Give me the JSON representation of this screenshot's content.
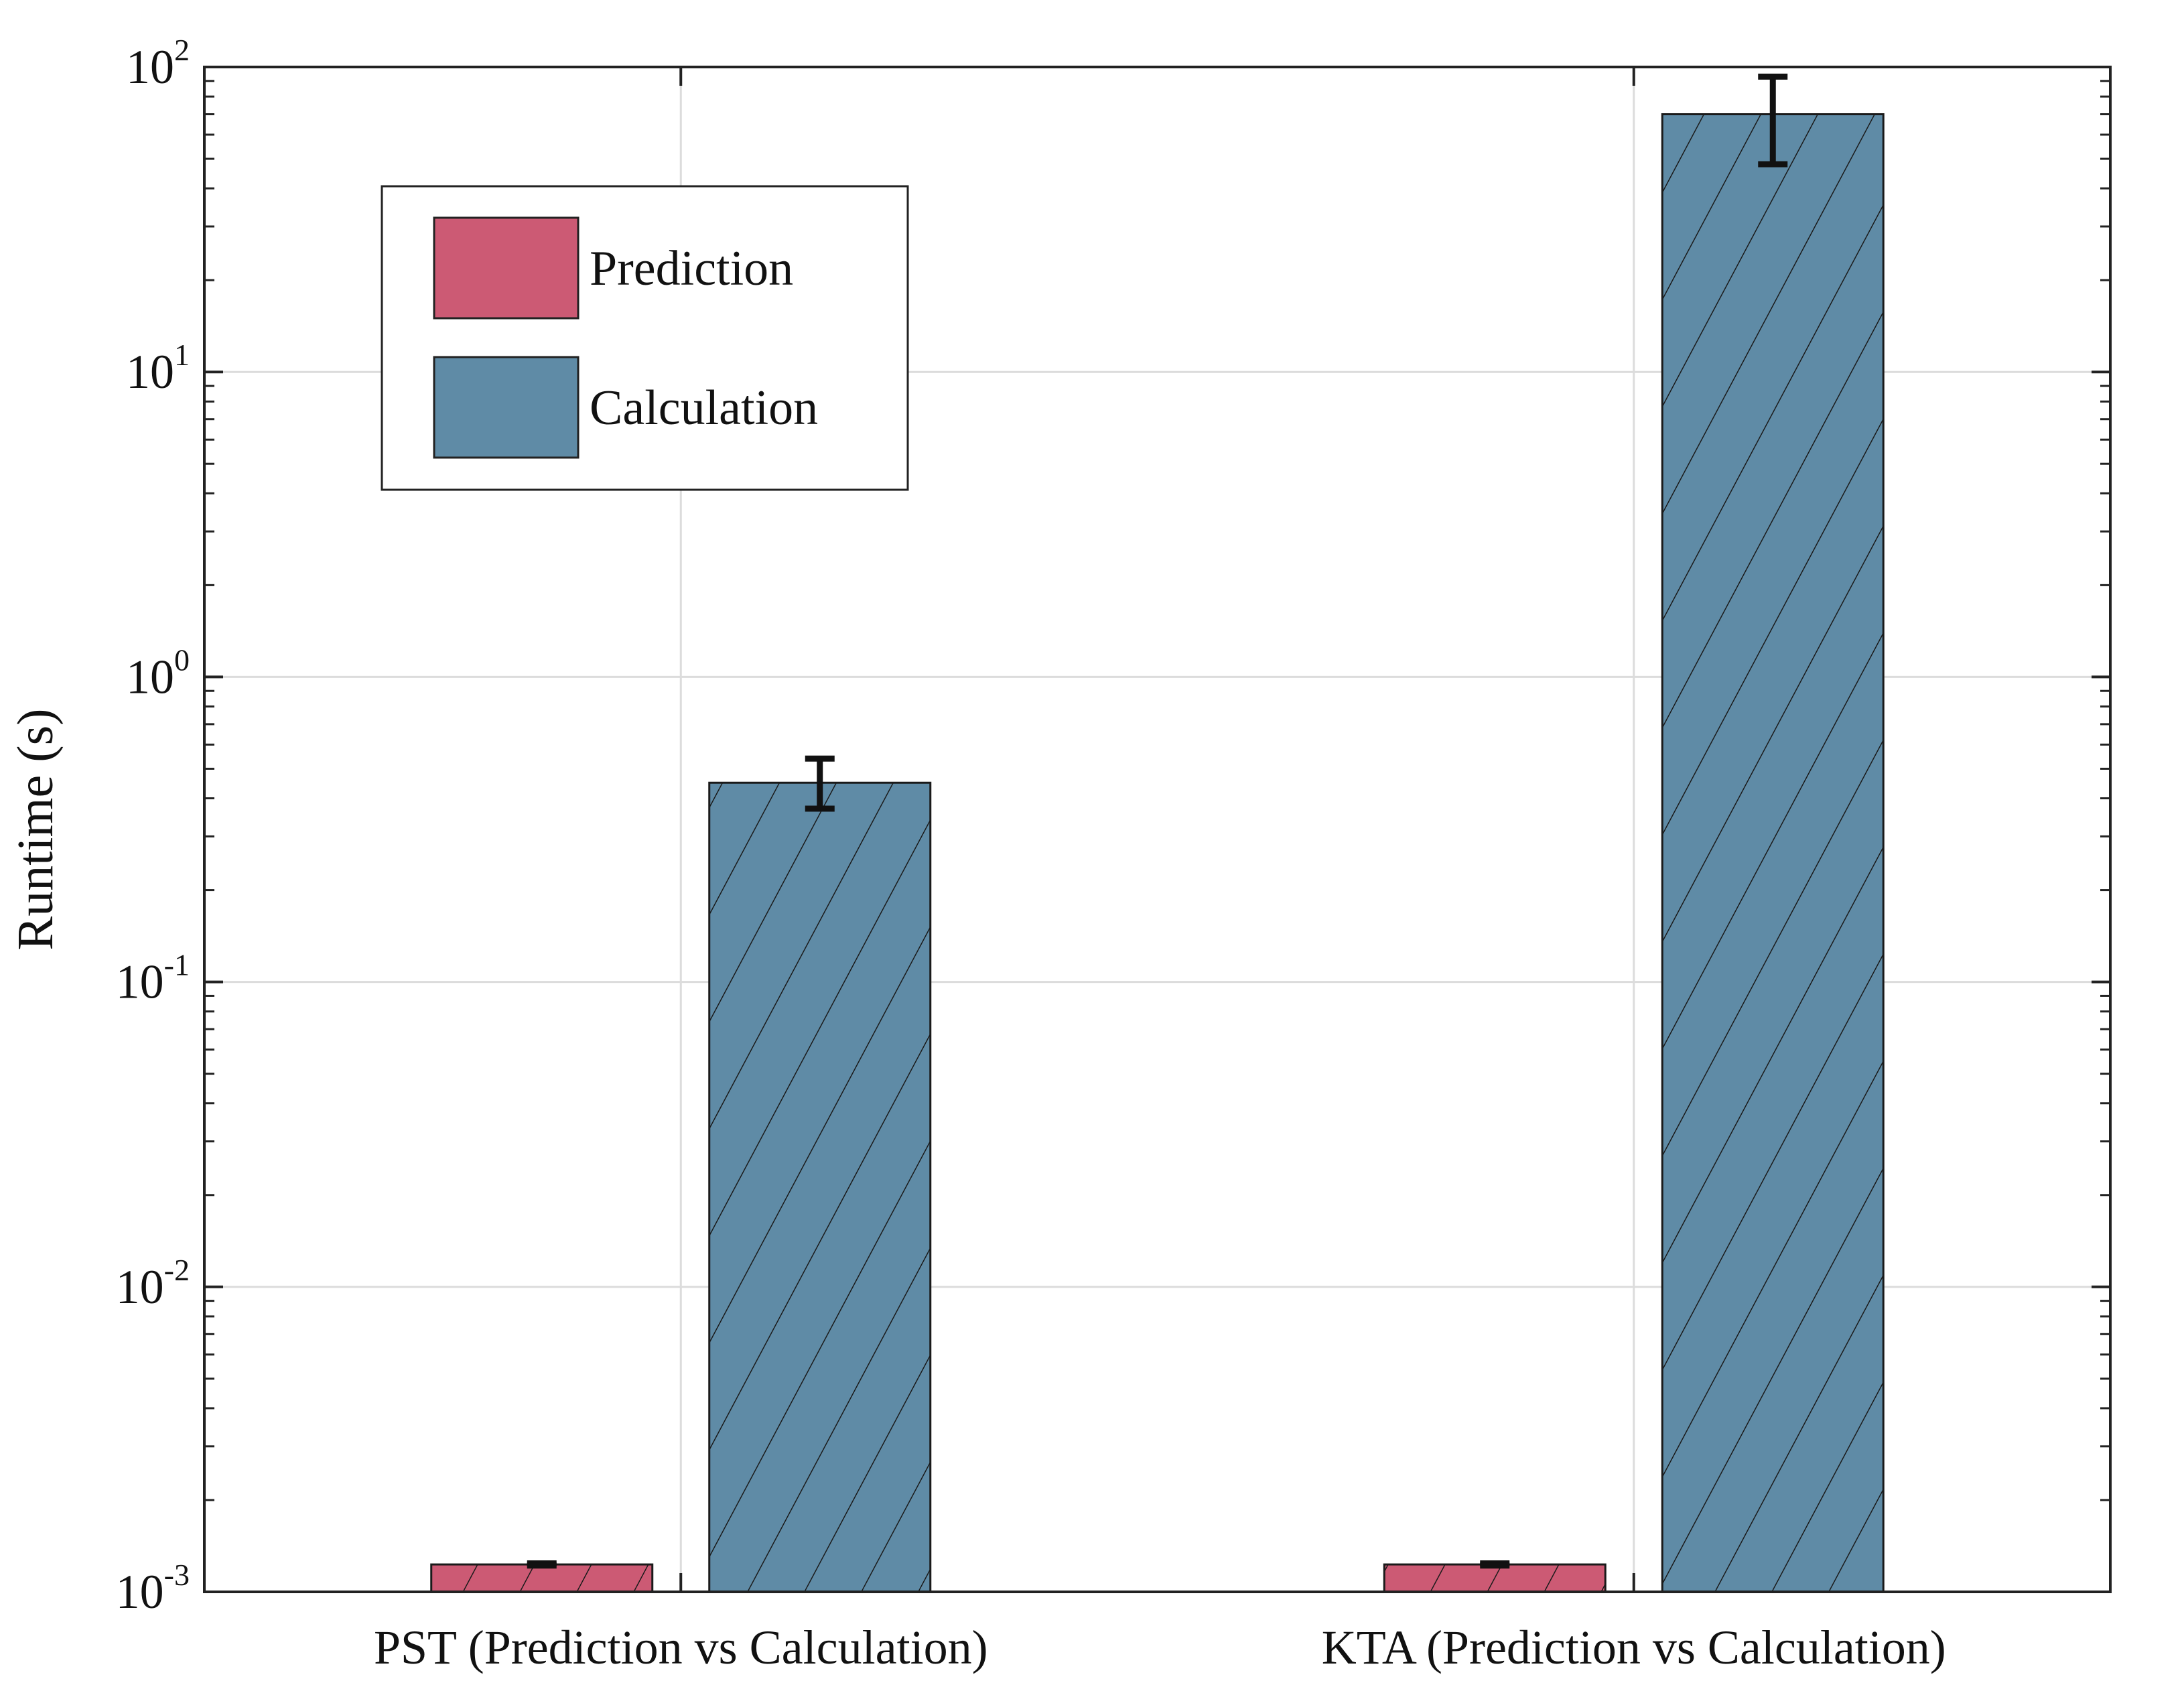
{
  "chart_data": {
    "type": "bar",
    "ylabel": "Runtime (s)",
    "yscale": "log",
    "ylim": [
      0.001,
      100
    ],
    "y_ticks": [
      {
        "value": 0.001,
        "base": "10",
        "exp": "-3"
      },
      {
        "value": 0.01,
        "base": "10",
        "exp": "-2"
      },
      {
        "value": 0.1,
        "base": "10",
        "exp": "-1"
      },
      {
        "value": 1,
        "base": "10",
        "exp": "0"
      },
      {
        "value": 10,
        "base": "10",
        "exp": "1"
      },
      {
        "value": 100,
        "base": "10",
        "exp": "2"
      }
    ],
    "grid": true,
    "legend_position": "top-left",
    "categories": [
      "PST (Prediction vs Calculation)",
      "KTA (Prediction vs Calculation)"
    ],
    "series": [
      {
        "name": "Prediction",
        "color": "#cc5a74",
        "hatch": "diagonal",
        "values": [
          0.00123,
          0.00123
        ],
        "error_low": [
          0.00122,
          0.00122
        ],
        "error_high": [
          0.00124,
          0.00124
        ]
      },
      {
        "name": "Calculation",
        "color": "#5f8ba6",
        "hatch": "diagonal",
        "values": [
          0.45,
          70
        ],
        "error_low": [
          0.37,
          48
        ],
        "error_high": [
          0.54,
          93
        ]
      }
    ]
  }
}
